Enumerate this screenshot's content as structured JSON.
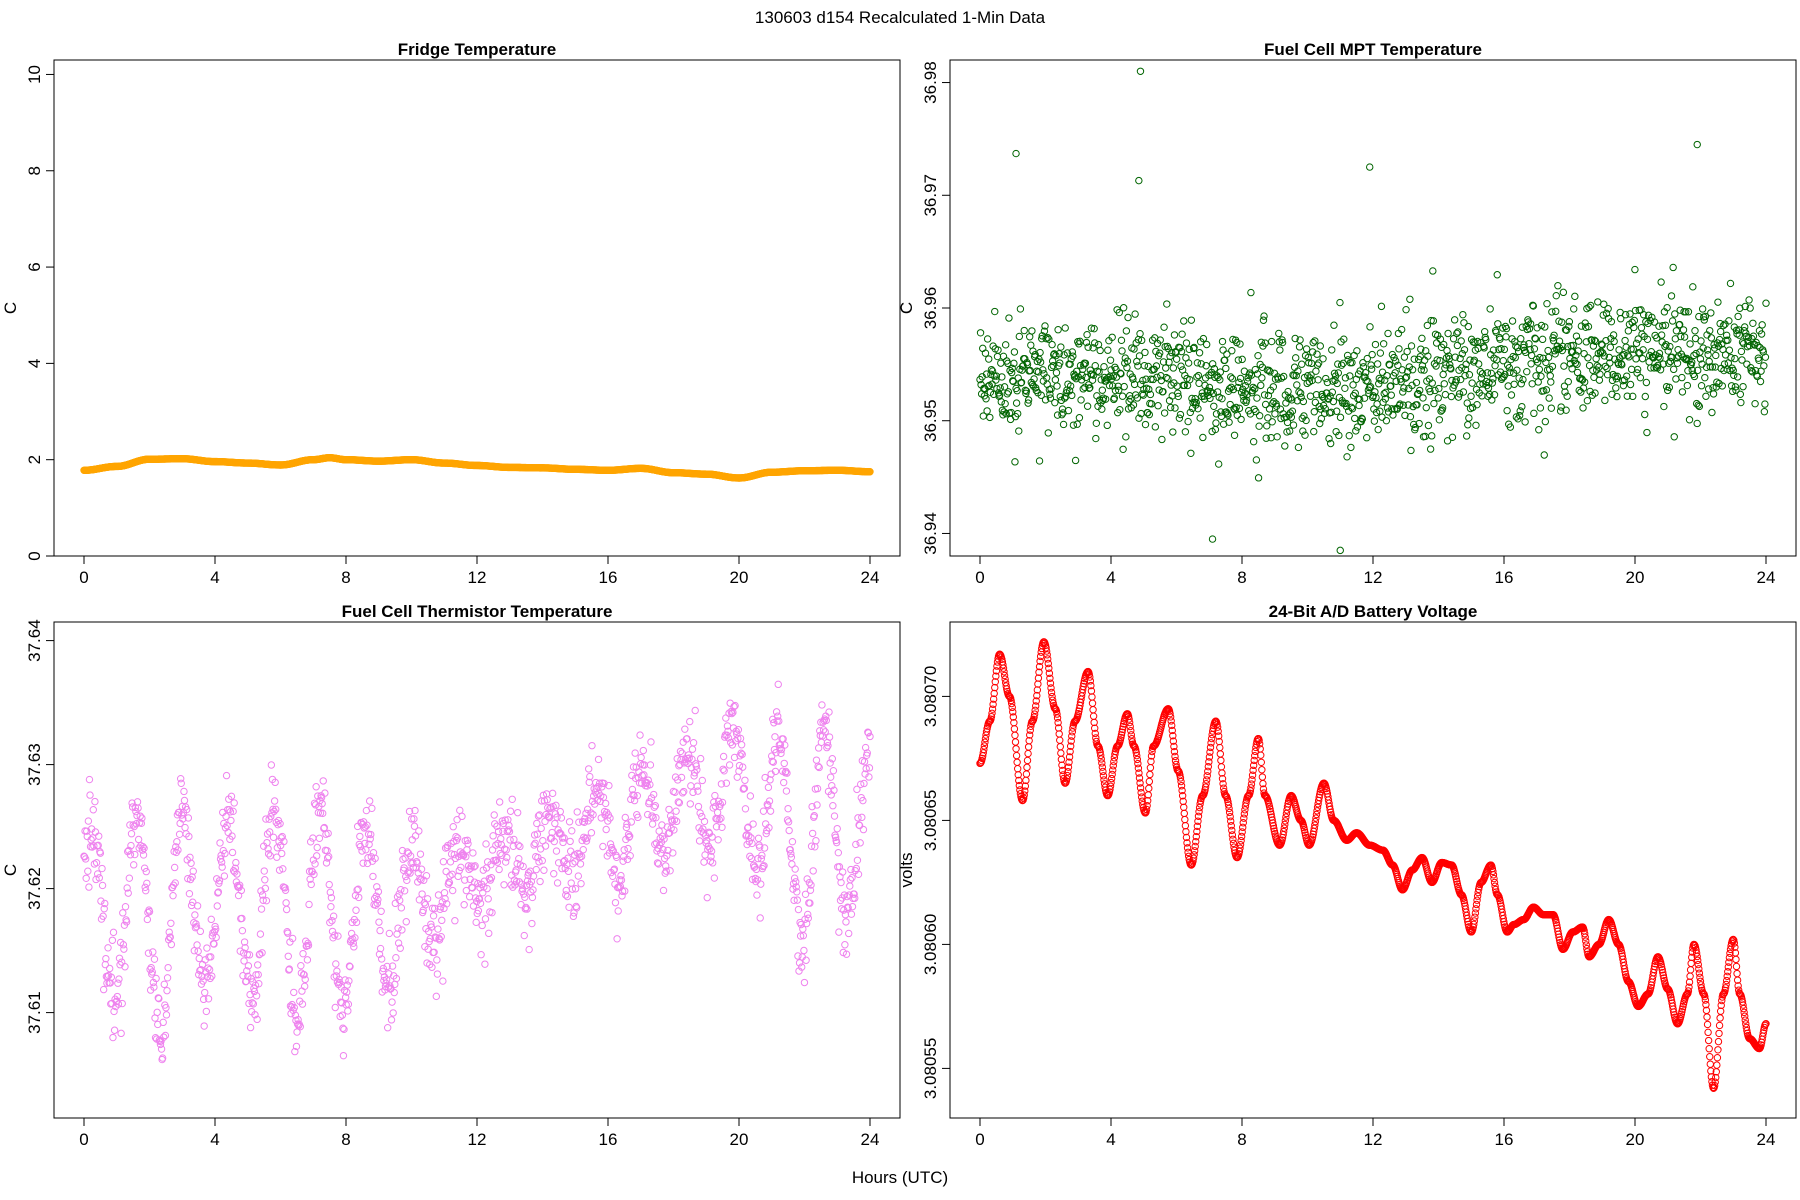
{
  "figure": {
    "title": "130603   d154   Recalculated 1-Min Data",
    "xlabel": "Hours (UTC)"
  },
  "chart_data": [
    {
      "id": "fridge",
      "type": "scatter",
      "title": "Fridge Temperature",
      "xlabel": "",
      "ylabel": "C",
      "xlim": [
        0,
        24
      ],
      "ylim": [
        0,
        10.3
      ],
      "xticks": [
        0,
        4,
        8,
        12,
        16,
        20,
        24
      ],
      "yticks": [
        0,
        2,
        4,
        6,
        8,
        10
      ],
      "ytick_labels": [
        "0",
        "2",
        "4",
        "6",
        "8",
        "10"
      ],
      "color": "#FFA500",
      "filled": true,
      "mode": "smooth",
      "series": [
        {
          "x": [
            0,
            1,
            2,
            3,
            4,
            5,
            6,
            7,
            7.5,
            8,
            9,
            10,
            11,
            12,
            13,
            14,
            15,
            16,
            17,
            18,
            19,
            20,
            21,
            22,
            23,
            24
          ],
          "y": [
            1.78,
            1.86,
            2.01,
            2.02,
            1.96,
            1.93,
            1.89,
            2.0,
            2.04,
            2.0,
            1.97,
            2.0,
            1.93,
            1.88,
            1.84,
            1.83,
            1.8,
            1.78,
            1.82,
            1.73,
            1.7,
            1.62,
            1.74,
            1.77,
            1.78,
            1.75
          ]
        }
      ]
    },
    {
      "id": "mpt",
      "type": "scatter",
      "title": "Fuel Cell MPT Temperature",
      "xlabel": "",
      "ylabel": "C",
      "xlim": [
        0,
        24
      ],
      "ylim": [
        36.938,
        36.982
      ],
      "xticks": [
        0,
        4,
        8,
        12,
        16,
        20,
        24
      ],
      "yticks": [
        36.94,
        36.95,
        36.96,
        36.97,
        36.98
      ],
      "ytick_labels": [
        "36.94",
        "36.95",
        "36.96",
        "36.97",
        "36.98"
      ],
      "color": "#006400",
      "filled": false,
      "mode": "noise",
      "series": [
        {
          "x": [
            0,
            4,
            8,
            12,
            16,
            20,
            24
          ],
          "y": [
            36.954,
            36.954,
            36.953,
            36.953,
            36.955,
            36.956,
            36.956
          ]
        }
      ],
      "spread": 0.0045,
      "outliers": [
        {
          "x": 4.9,
          "y": 36.981
        },
        {
          "x": 4.85,
          "y": 36.9713
        },
        {
          "x": 1.1,
          "y": 36.9737
        },
        {
          "x": 21.9,
          "y": 36.9745
        },
        {
          "x": 11.9,
          "y": 36.9725
        },
        {
          "x": 11.0,
          "y": 36.9385
        },
        {
          "x": 7.1,
          "y": 36.9395
        }
      ]
    },
    {
      "id": "thermistor",
      "type": "scatter",
      "title": "Fuel Cell Thermistor Temperature",
      "xlabel": "",
      "ylabel": "C",
      "xlim": [
        0,
        24
      ],
      "ylim": [
        37.6015,
        37.6415
      ],
      "xticks": [
        0,
        4,
        8,
        12,
        16,
        20,
        24
      ],
      "yticks": [
        37.61,
        37.62,
        37.63,
        37.64
      ],
      "ytick_labels": [
        "37.61",
        "37.62",
        "37.63",
        "37.64"
      ],
      "color": "#EE82EE",
      "filled": false,
      "mode": "oscillate",
      "series": [
        {
          "x": [
            0,
            2,
            4,
            6,
            8,
            10,
            11,
            12,
            14,
            16,
            18,
            20,
            22,
            24
          ],
          "y": [
            37.619,
            37.617,
            37.619,
            37.618,
            37.618,
            37.618,
            37.62,
            37.621,
            37.623,
            37.625,
            37.627,
            37.628,
            37.624,
            37.625
          ]
        }
      ],
      "amplitude": [
        0.006,
        0.009,
        0.007,
        0.008,
        0.008,
        0.006,
        0.003,
        0.002,
        0.003,
        0.004,
        0.004,
        0.005,
        0.009,
        0.006
      ],
      "period": 1.4,
      "spread": 0.0018
    },
    {
      "id": "battery",
      "type": "line",
      "title": "24-Bit A/D Battery Voltage",
      "xlabel": "",
      "ylabel": "volts",
      "xlim": [
        0,
        24
      ],
      "ylim": [
        3.08053,
        3.08073
      ],
      "xticks": [
        0,
        4,
        8,
        12,
        16,
        20,
        24
      ],
      "yticks": [
        3.08055,
        3.0806,
        3.08065,
        3.0807
      ],
      "ytick_labels": [
        "3.08055",
        "3.08060",
        "3.08065",
        "3.08070"
      ],
      "color": "#FF0000",
      "filled": false,
      "mode": "smooth",
      "series": [
        {
          "x": [
            0,
            0.3,
            0.6,
            0.9,
            1.3,
            1.6,
            1.95,
            2.3,
            2.6,
            2.9,
            3.3,
            3.6,
            3.9,
            4.2,
            4.5,
            4.7,
            5.05,
            5.3,
            5.75,
            6.05,
            6.45,
            6.8,
            7.2,
            7.5,
            7.85,
            8.2,
            8.5,
            8.7,
            9.15,
            9.5,
            9.8,
            10.05,
            10.5,
            10.8,
            11.2,
            11.5,
            11.9,
            12.3,
            12.6,
            12.9,
            13.2,
            13.5,
            13.8,
            14.1,
            14.4,
            14.7,
            15.0,
            15.3,
            15.6,
            15.8,
            16.1,
            16.3,
            16.6,
            16.9,
            17.2,
            17.5,
            17.8,
            18.1,
            18.4,
            18.6,
            18.9,
            19.2,
            19.5,
            19.8,
            20.1,
            20.4,
            20.7,
            21.0,
            21.3,
            21.6,
            21.8,
            22.1,
            22.4,
            22.7,
            23.0,
            23.2,
            23.5,
            23.8,
            24.0
          ],
          "y": [
            3.080673,
            3.08069,
            3.080717,
            3.0807,
            3.080658,
            3.08069,
            3.080722,
            3.080695,
            3.080665,
            3.08069,
            3.08071,
            3.08068,
            3.08066,
            3.08068,
            3.080693,
            3.08068,
            3.080653,
            3.08068,
            3.080695,
            3.08067,
            3.080632,
            3.08066,
            3.08069,
            3.08066,
            3.080635,
            3.08066,
            3.080683,
            3.08066,
            3.08064,
            3.08066,
            3.08065,
            3.08064,
            3.080665,
            3.08065,
            3.080642,
            3.080645,
            3.08064,
            3.080638,
            3.080632,
            3.080622,
            3.08063,
            3.080635,
            3.080625,
            3.080633,
            3.080632,
            3.08062,
            3.080605,
            3.080625,
            3.080632,
            3.08062,
            3.080605,
            3.080608,
            3.08061,
            3.080615,
            3.080612,
            3.080612,
            3.080598,
            3.080605,
            3.080607,
            3.080595,
            3.0806,
            3.08061,
            3.0806,
            3.080585,
            3.080575,
            3.08058,
            3.080595,
            3.080582,
            3.080568,
            3.08058,
            3.0806,
            3.08058,
            3.080542,
            3.08058,
            3.080602,
            3.08058,
            3.080562,
            3.080558,
            3.080568
          ]
        }
      ]
    }
  ]
}
